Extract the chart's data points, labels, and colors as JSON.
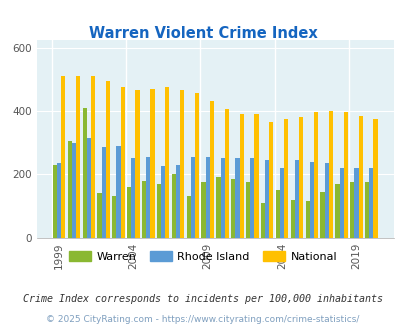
{
  "title": "Warren Violent Crime Index",
  "years": [
    1999,
    2000,
    2001,
    2002,
    2003,
    2004,
    2005,
    2006,
    2007,
    2008,
    2009,
    2010,
    2011,
    2012,
    2013,
    2014,
    2015,
    2016,
    2017,
    2018,
    2019,
    2020
  ],
  "warren": [
    230,
    305,
    410,
    140,
    130,
    160,
    180,
    170,
    200,
    130,
    175,
    190,
    185,
    175,
    110,
    150,
    120,
    115,
    145,
    170,
    175,
    175
  ],
  "rhode_island": [
    235,
    300,
    315,
    285,
    290,
    250,
    255,
    225,
    230,
    255,
    255,
    250,
    250,
    250,
    245,
    220,
    245,
    240,
    235,
    220,
    220,
    220
  ],
  "national": [
    510,
    510,
    510,
    495,
    475,
    465,
    470,
    475,
    465,
    455,
    430,
    405,
    390,
    390,
    365,
    375,
    380,
    395,
    400,
    395,
    385,
    375
  ],
  "warren_color": "#8ab832",
  "ri_color": "#5b9bd5",
  "national_color": "#ffc000",
  "bg_color": "#e4f1f5",
  "title_color": "#1565c0",
  "ylim": [
    0,
    625
  ],
  "yticks": [
    0,
    200,
    400,
    600
  ],
  "bar_width": 0.28,
  "tick_years": [
    1999,
    2004,
    2009,
    2014,
    2019
  ],
  "footnote1": "Crime Index corresponds to incidents per 100,000 inhabitants",
  "footnote2": "© 2025 CityRating.com - https://www.cityrating.com/crime-statistics/",
  "legend_labels": [
    "Warren",
    "Rhode Island",
    "National"
  ]
}
